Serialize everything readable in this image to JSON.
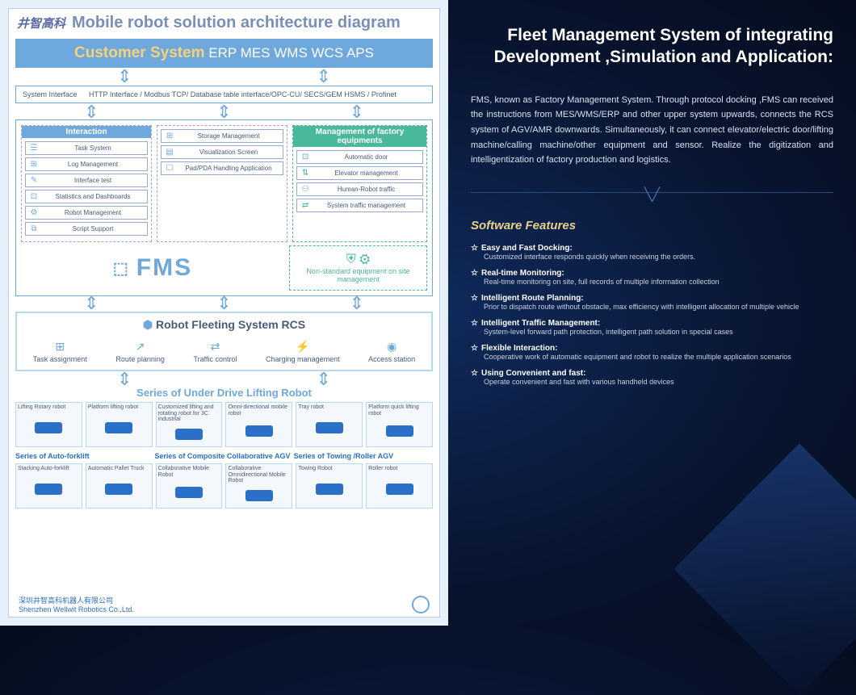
{
  "left": {
    "logo_cn": "井智高科",
    "main_title": "Mobile robot solution architecture diagram",
    "customer_label": "Customer System",
    "customer_systems": "ERP  MES  WMS WCS APS",
    "iface_label": "System Interface",
    "iface_text": "HTTP Interface / Modbus TCP/ Database table interface/OPC-CU/ SECS/GEM HSMS / Profinet",
    "col1_title": "Interaction",
    "col1_items": [
      "Task System",
      "Log Management",
      "Interface test",
      "Statistics and Dashboards",
      "Robot Management",
      "Script Support"
    ],
    "col2_items": [
      "Storage Management",
      "Visualization Screen",
      "Pad/PDA Handling Application"
    ],
    "col3_title": "Management of factory equipments",
    "col3_items": [
      "Automatic door",
      "Elevator management",
      "Human-Robot traffic",
      "System traffic management"
    ],
    "fms_label": "FMS",
    "nonstd_label": "Non-standard equipment on site management",
    "rcs_title": "Robot Fleeting System RCS",
    "rcs_items": [
      "Task assignment",
      "Route planning",
      "Traffic control",
      "Charging management",
      "Access station"
    ],
    "robot_head": "Series of Under Drive Lifting Robot",
    "robots1": [
      "Lifting Rotary robot",
      "Platform lifting robot",
      "Customized lifting and rotating robot for 3C industrial",
      "Omni-directional mobile robot",
      "Tray robot",
      "Platform quick lifting robot"
    ],
    "series2": [
      "Series of Auto-forklift",
      "Series of Composite Collaborative AGV",
      "Series of Towing /Roller AGV"
    ],
    "robots2": [
      "Stacking Auto-forklift",
      "Automatic Pallet Truck",
      "Collaborative Mobile Robot",
      "Collaborative Omnidirectional Mobile Robot",
      "Towing Robot",
      "Roller robot"
    ],
    "footer_cn": "深圳井智高科机器人有限公司",
    "footer_en": "Shenzhen Wellwit Robotics Co.,Ltd."
  },
  "right": {
    "title": "Fleet Management System of  integrating Development ,Simulation and Application:",
    "desc": "FMS, known as Factory Management System. Through protocol docking ,FMS can received the instructions from MES/WMS/ERP and other upper system upwards, connects the RCS system of AGV/AMR downwards. Simultaneously, it can connect elevator/electric door/lifting machine/calling machine/other equipment and sensor. Realize the digitization and intelligentization of factory production and logistics.",
    "sf_title": "Software Features",
    "features": [
      {
        "h": "Easy and Fast Docking:",
        "d": "Customized interface responds quickly when receiving the orders."
      },
      {
        "h": "Real-time Monitoring:",
        "d": "Real-time monitoring on site, full records of multiple information collection"
      },
      {
        "h": "Intelligent Route Planning:",
        "d": "Prior to dispatch route without obstacle, max efficiency with intelligent allocation of multiple vehicle"
      },
      {
        "h": "Intelligent Traffic Management:",
        "d": "System-level forward path protection, intelligent path solution in special cases"
      },
      {
        "h": "Flexible Interaction:",
        "d": "Cooperative work of automatic equipment and robot to realize the multiple application scenarios"
      },
      {
        "h": "Using Convenient and fast:",
        "d": "Operate convenient and fast with various handheld devices"
      }
    ]
  },
  "colors": {
    "primary": "#6fa8dc",
    "green": "#4ab89a",
    "bg": "#e5f0fa",
    "rightbg": "#0a1a3a"
  }
}
